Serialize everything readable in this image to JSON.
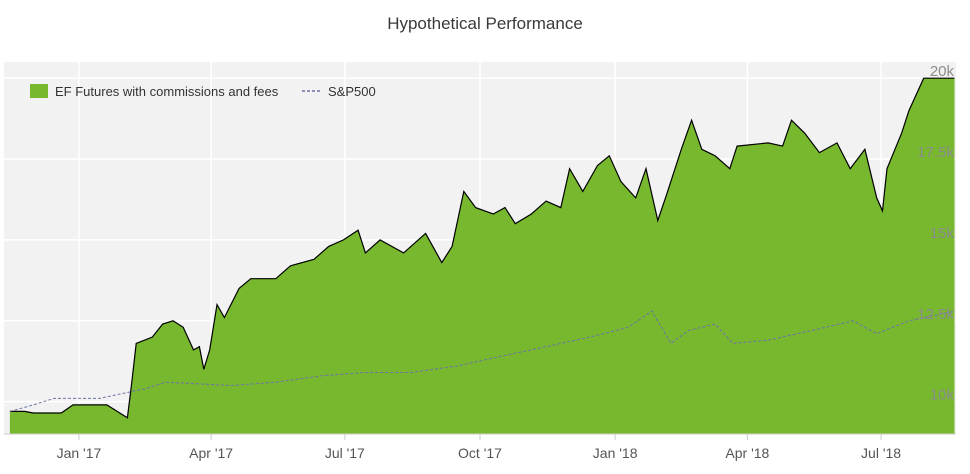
{
  "chart_data": {
    "type": "area",
    "title": "Hypothetical Performance",
    "xlabel": "",
    "ylabel": "",
    "x_tick_labels": [
      "Jan '17",
      "Apr '17",
      "Jul '17",
      "Oct '17",
      "Jan '18",
      "Apr '18",
      "Jul '18"
    ],
    "y_tick_labels": [
      "10k",
      "12.5k",
      "15k",
      "17.5k",
      "20k"
    ],
    "ylim": [
      9000,
      20500
    ],
    "grid": true,
    "legend_position": "top-left",
    "colors": {
      "fund_fill": "#77b82e",
      "fund_line": "#000000",
      "benchmark": "#6d73a8",
      "plot_bg": "#f2f2f2"
    },
    "series": [
      {
        "name": "EF Futures with commissions and fees",
        "style": "area",
        "points": [
          [
            "2016-11-15",
            9700
          ],
          [
            "2016-11-25",
            9700
          ],
          [
            "2016-12-01",
            9650
          ],
          [
            "2016-12-20",
            9650
          ],
          [
            "2016-12-28",
            9900
          ],
          [
            "2017-01-20",
            9900
          ],
          [
            "2017-02-03",
            9500
          ],
          [
            "2017-02-06",
            10600
          ],
          [
            "2017-02-09",
            11800
          ],
          [
            "2017-02-20",
            12000
          ],
          [
            "2017-02-27",
            12400
          ],
          [
            "2017-03-06",
            12500
          ],
          [
            "2017-03-13",
            12300
          ],
          [
            "2017-03-20",
            11600
          ],
          [
            "2017-03-24",
            11700
          ],
          [
            "2017-03-27",
            11000
          ],
          [
            "2017-03-31",
            11600
          ],
          [
            "2017-04-05",
            13000
          ],
          [
            "2017-04-10",
            12600
          ],
          [
            "2017-04-20",
            13500
          ],
          [
            "2017-04-28",
            13800
          ],
          [
            "2017-05-15",
            13800
          ],
          [
            "2017-05-25",
            14200
          ],
          [
            "2017-06-10",
            14400
          ],
          [
            "2017-06-20",
            14800
          ],
          [
            "2017-06-30",
            15000
          ],
          [
            "2017-07-10",
            15300
          ],
          [
            "2017-07-15",
            14600
          ],
          [
            "2017-07-25",
            15000
          ],
          [
            "2017-08-10",
            14600
          ],
          [
            "2017-08-25",
            15200
          ],
          [
            "2017-09-05",
            14300
          ],
          [
            "2017-09-12",
            14800
          ],
          [
            "2017-09-20",
            16500
          ],
          [
            "2017-09-28",
            16000
          ],
          [
            "2017-10-10",
            15800
          ],
          [
            "2017-10-18",
            16000
          ],
          [
            "2017-10-25",
            15500
          ],
          [
            "2017-11-05",
            15800
          ],
          [
            "2017-11-15",
            16200
          ],
          [
            "2017-11-25",
            16000
          ],
          [
            "2017-12-01",
            17200
          ],
          [
            "2017-12-10",
            16500
          ],
          [
            "2017-12-20",
            17300
          ],
          [
            "2017-12-28",
            17600
          ],
          [
            "2018-01-05",
            16800
          ],
          [
            "2018-01-15",
            16300
          ],
          [
            "2018-01-22",
            17200
          ],
          [
            "2018-01-30",
            15600
          ],
          [
            "2018-02-05",
            16400
          ],
          [
            "2018-02-15",
            17800
          ],
          [
            "2018-02-22",
            18700
          ],
          [
            "2018-03-01",
            17800
          ],
          [
            "2018-03-10",
            17600
          ],
          [
            "2018-03-20",
            17200
          ],
          [
            "2018-03-25",
            17900
          ],
          [
            "2018-04-15",
            18000
          ],
          [
            "2018-04-25",
            17900
          ],
          [
            "2018-05-01",
            18700
          ],
          [
            "2018-05-10",
            18300
          ],
          [
            "2018-05-20",
            17700
          ],
          [
            "2018-06-01",
            18000
          ],
          [
            "2018-06-10",
            17200
          ],
          [
            "2018-06-20",
            17800
          ],
          [
            "2018-06-28",
            16300
          ],
          [
            "2018-07-02",
            15900
          ],
          [
            "2018-07-05",
            17200
          ],
          [
            "2018-07-15",
            18300
          ],
          [
            "2018-07-20",
            19000
          ],
          [
            "2018-07-30",
            20000
          ],
          [
            "2018-08-20",
            20000
          ]
        ]
      },
      {
        "name": "S&P500",
        "style": "dashed-line",
        "points": [
          [
            "2016-11-15",
            9700
          ],
          [
            "2016-12-01",
            9900
          ],
          [
            "2016-12-15",
            10100
          ],
          [
            "2017-01-15",
            10100
          ],
          [
            "2017-02-15",
            10400
          ],
          [
            "2017-03-01",
            10600
          ],
          [
            "2017-04-15",
            10500
          ],
          [
            "2017-05-15",
            10600
          ],
          [
            "2017-06-15",
            10800
          ],
          [
            "2017-07-15",
            10900
          ],
          [
            "2017-08-15",
            10900
          ],
          [
            "2017-09-15",
            11100
          ],
          [
            "2017-10-15",
            11400
          ],
          [
            "2017-11-15",
            11700
          ],
          [
            "2017-12-15",
            12000
          ],
          [
            "2018-01-10",
            12300
          ],
          [
            "2018-01-26",
            12800
          ],
          [
            "2018-02-08",
            11800
          ],
          [
            "2018-02-20",
            12200
          ],
          [
            "2018-03-10",
            12400
          ],
          [
            "2018-03-22",
            11800
          ],
          [
            "2018-04-15",
            11900
          ],
          [
            "2018-05-15",
            12200
          ],
          [
            "2018-06-12",
            12500
          ],
          [
            "2018-06-28",
            12100
          ],
          [
            "2018-07-20",
            12500
          ],
          [
            "2018-08-20",
            12800
          ]
        ]
      }
    ]
  }
}
